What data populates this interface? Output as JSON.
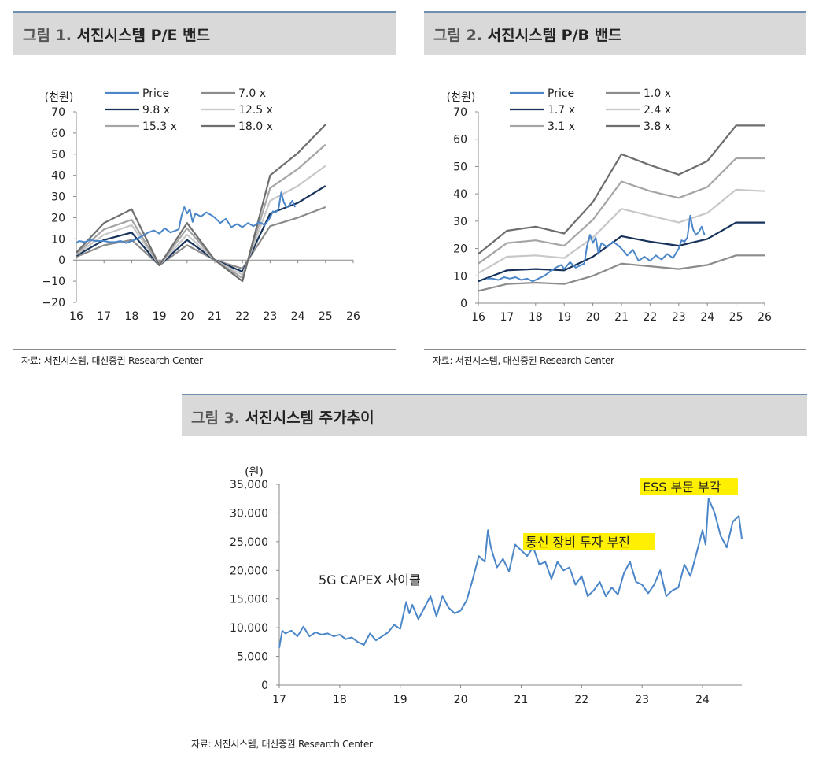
{
  "figures": {
    "fig1": {
      "num": "그림 1.",
      "title": "서진시스템 P/E 밴드",
      "source": "자료: 서진시스템, 대신증권 Research Center"
    },
    "fig2": {
      "num": "그림 2.",
      "title": "서진시스템 P/B 밴드",
      "source": "자료: 서진시스템, 대신증권 Research Center"
    },
    "fig3": {
      "num": "그림 3.",
      "title": "서진시스템 주가추이",
      "source": "자료: 서진시스템, 대신증권 Research Center"
    }
  },
  "colors": {
    "price": "#4a86c8",
    "navy": "#17325a",
    "gray1": "#8c8c8c",
    "gray2": "#c8c8c8",
    "gray3": "#a5a5a5",
    "gray4": "#6e6e6e",
    "highlight": "#ffef00"
  },
  "chart_data": [
    {
      "type": "line",
      "id": "pe_band",
      "unit_label": "(천원)",
      "ylim": [
        -20,
        70
      ],
      "yticks": [
        -20,
        -10,
        0,
        10,
        20,
        30,
        40,
        50,
        60,
        70
      ],
      "xlim": [
        16,
        26
      ],
      "xticks": [
        "16",
        "17",
        "18",
        "19",
        "20",
        "21",
        "22",
        "23",
        "24",
        "25",
        "26"
      ],
      "x": [
        16,
        17,
        18,
        19,
        20,
        21,
        22,
        23,
        24,
        25
      ],
      "series": [
        {
          "name": "7.0 x",
          "color": "#8c8c8c",
          "values": [
            1.5,
            7,
            9.5,
            -2.5,
            7,
            0,
            -4,
            16,
            20,
            25
          ]
        },
        {
          "name": "9.8 x",
          "color": "#17325a",
          "values": [
            2,
            9.5,
            13,
            -2.5,
            9.5,
            0,
            -5.5,
            22,
            27,
            35
          ]
        },
        {
          "name": "12.5 x",
          "color": "#c8c8c8",
          "values": [
            2.5,
            12,
            16.5,
            -2.5,
            12,
            0,
            -7,
            28,
            35,
            44.5
          ]
        },
        {
          "name": "15.3 x",
          "color": "#a5a5a5",
          "values": [
            3,
            14.5,
            19,
            -2.5,
            15,
            0,
            -8.5,
            34,
            43,
            54.5
          ]
        },
        {
          "name": "18.0 x",
          "color": "#6e6e6e",
          "values": [
            3.5,
            17.5,
            24,
            -2.5,
            17.5,
            0,
            -10,
            40,
            50.5,
            64
          ]
        },
        {
          "name": "Price",
          "color": "#4a86c8",
          "x": [
            16.0,
            16.1,
            16.3,
            16.5,
            16.7,
            16.9,
            17.0,
            17.2,
            17.4,
            17.6,
            17.8,
            18.0,
            18.2,
            18.4,
            18.6,
            18.8,
            19.0,
            19.2,
            19.4,
            19.6,
            19.7,
            19.8,
            19.9,
            20.0,
            20.1,
            20.2,
            20.3,
            20.5,
            20.7,
            20.9,
            21.0,
            21.2,
            21.4,
            21.6,
            21.8,
            22.0,
            22.2,
            22.4,
            22.6,
            22.8,
            23.0,
            23.1,
            23.2,
            23.3,
            23.4,
            23.5,
            23.6,
            23.7,
            23.8,
            23.9
          ],
          "values": [
            8,
            9,
            8.5,
            9.5,
            9,
            9,
            9,
            8.5,
            8.5,
            9,
            8,
            9,
            10,
            11.5,
            13,
            14,
            12.5,
            15,
            13,
            14,
            14.5,
            21,
            25,
            22,
            24,
            18,
            22,
            20.5,
            22.5,
            21,
            20,
            17.5,
            19.5,
            15.5,
            17,
            15.5,
            17.5,
            16,
            18,
            16.5,
            20,
            23,
            22.5,
            24,
            32,
            27,
            25,
            26,
            28,
            25
          ]
        }
      ],
      "legend": [
        [
          "Price",
          "7.0 x"
        ],
        [
          "9.8 x",
          "12.5 x"
        ],
        [
          "15.3 x",
          "18.0 x"
        ]
      ]
    },
    {
      "type": "line",
      "id": "pb_band",
      "unit_label": "(천원)",
      "ylim": [
        0,
        70
      ],
      "yticks": [
        0,
        10,
        20,
        30,
        40,
        50,
        60,
        70
      ],
      "xlim": [
        16,
        26
      ],
      "xticks": [
        "16",
        "17",
        "18",
        "19",
        "20",
        "21",
        "22",
        "23",
        "24",
        "25",
        "26"
      ],
      "x": [
        16,
        17,
        18,
        19,
        20,
        21,
        22,
        23,
        24,
        25,
        26
      ],
      "series": [
        {
          "name": "1.0 x",
          "color": "#8c8c8c",
          "values": [
            4.5,
            7,
            7.5,
            7,
            10,
            14.5,
            13.5,
            12.5,
            14,
            17.5,
            17.5
          ]
        },
        {
          "name": "1.7 x",
          "color": "#17325a",
          "values": [
            8,
            12,
            12.5,
            12,
            17,
            24.5,
            22.5,
            21,
            23.5,
            29.5,
            29.5
          ]
        },
        {
          "name": "2.4 x",
          "color": "#c8c8c8",
          "values": [
            11,
            17,
            17.5,
            16.5,
            24,
            34.5,
            32,
            29.5,
            33,
            41.5,
            41
          ]
        },
        {
          "name": "3.1 x",
          "color": "#a5a5a5",
          "values": [
            14.5,
            22,
            23,
            21,
            30.5,
            44.5,
            41,
            38.5,
            42.5,
            53,
            53
          ]
        },
        {
          "name": "3.8 x",
          "color": "#6e6e6e",
          "values": [
            18,
            26.5,
            28,
            25.5,
            37,
            54.5,
            50.5,
            47,
            52,
            65,
            65
          ]
        },
        {
          "name": "Price",
          "color": "#4a86c8",
          "x": [
            16.3,
            16.5,
            16.7,
            16.9,
            17.1,
            17.3,
            17.5,
            17.7,
            17.9,
            18.1,
            18.3,
            18.5,
            18.7,
            18.9,
            19.0,
            19.2,
            19.4,
            19.6,
            19.7,
            19.8,
            19.9,
            20.0,
            20.1,
            20.2,
            20.3,
            20.5,
            20.7,
            20.9,
            21.0,
            21.2,
            21.4,
            21.6,
            21.8,
            22.0,
            22.2,
            22.4,
            22.6,
            22.8,
            23.0,
            23.1,
            23.2,
            23.3,
            23.4,
            23.5,
            23.6,
            23.7,
            23.8,
            23.9
          ],
          "values": [
            9,
            9,
            8.5,
            9.5,
            9,
            9.5,
            8.5,
            9,
            8,
            9,
            10,
            11.5,
            13,
            14,
            12.5,
            15,
            13,
            14,
            14.5,
            21,
            25,
            22,
            24,
            18,
            22,
            20.5,
            22.5,
            21,
            20,
            17.5,
            19.5,
            15.5,
            17,
            15.5,
            17.5,
            16,
            18,
            16.5,
            20,
            23,
            22.5,
            24,
            32,
            27,
            25,
            26,
            28,
            25
          ]
        }
      ],
      "legend": [
        [
          "Price",
          "1.0 x"
        ],
        [
          "1.7 x",
          "2.4 x"
        ],
        [
          "3.1 x",
          "3.8 x"
        ]
      ]
    },
    {
      "type": "line",
      "id": "price_trend",
      "unit_label": "(원)",
      "ylim": [
        0,
        35000
      ],
      "yticks": [
        "0",
        "5,000",
        "10,000",
        "15,000",
        "20,000",
        "25,000",
        "30,000",
        "35,000"
      ],
      "ytick_values": [
        0,
        5000,
        10000,
        15000,
        20000,
        25000,
        30000,
        35000
      ],
      "xlim": [
        17,
        24.65
      ],
      "xticks": [
        "17",
        "18",
        "19",
        "20",
        "21",
        "22",
        "23",
        "24"
      ],
      "annotations": [
        {
          "text": "5G CAPEX 사이클",
          "highlight": false
        },
        {
          "text": "통신 장비 투자 부진",
          "highlight": true
        },
        {
          "text": "ESS 부문 부각",
          "highlight": true
        }
      ],
      "series": [
        {
          "name": "주가",
          "color": "#4a86c8",
          "x": [
            17.0,
            17.05,
            17.1,
            17.2,
            17.3,
            17.4,
            17.5,
            17.6,
            17.7,
            17.8,
            17.9,
            18.0,
            18.1,
            18.2,
            18.3,
            18.4,
            18.5,
            18.6,
            18.7,
            18.8,
            18.9,
            19.0,
            19.1,
            19.15,
            19.2,
            19.3,
            19.4,
            19.5,
            19.6,
            19.7,
            19.8,
            19.9,
            20.0,
            20.1,
            20.2,
            20.3,
            20.4,
            20.45,
            20.5,
            20.6,
            20.7,
            20.8,
            20.9,
            21.0,
            21.1,
            21.2,
            21.3,
            21.4,
            21.5,
            21.6,
            21.7,
            21.8,
            21.9,
            22.0,
            22.1,
            22.2,
            22.3,
            22.4,
            22.5,
            22.6,
            22.7,
            22.8,
            22.9,
            23.0,
            23.1,
            23.2,
            23.3,
            23.4,
            23.5,
            23.6,
            23.7,
            23.8,
            23.9,
            23.95,
            24.0,
            24.05,
            24.1,
            24.2,
            24.3,
            24.4,
            24.5,
            24.6,
            24.65
          ],
          "values": [
            6500,
            9500,
            9000,
            9500,
            8500,
            10200,
            8500,
            9200,
            8800,
            9000,
            8500,
            8800,
            8000,
            8300,
            7500,
            7000,
            9000,
            7800,
            8500,
            9200,
            10500,
            9800,
            14500,
            12500,
            14000,
            11500,
            13500,
            15500,
            12000,
            15500,
            13500,
            12500,
            13000,
            14800,
            18500,
            22500,
            21500,
            27000,
            24000,
            20500,
            22000,
            19800,
            24500,
            23500,
            22500,
            24000,
            21000,
            21500,
            18500,
            21500,
            20000,
            20500,
            17500,
            19000,
            15500,
            16500,
            18000,
            15500,
            17000,
            15800,
            19500,
            21500,
            18000,
            17500,
            16000,
            17500,
            20000,
            15500,
            16500,
            17000,
            21000,
            19000,
            23000,
            25000,
            27000,
            24500,
            32500,
            30000,
            26000,
            24000,
            28500,
            29500,
            25500
          ]
        }
      ]
    }
  ]
}
